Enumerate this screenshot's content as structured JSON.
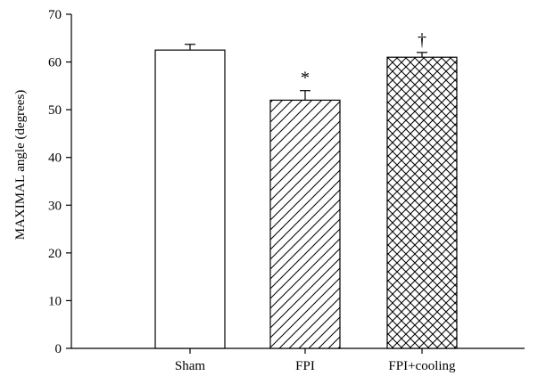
{
  "chart_data": {
    "type": "bar",
    "categories": [
      "Sham",
      "FPI",
      "FPI+cooling"
    ],
    "values": [
      62.5,
      52,
      61
    ],
    "errors": [
      1.2,
      2.0,
      1.0
    ],
    "annotations": [
      "",
      "*",
      "†"
    ],
    "patterns": [
      "none",
      "diagonal",
      "crosshatch"
    ],
    "ylabel": "MAXIMAL angle (degrees)",
    "xlabel": "",
    "ylim": [
      0,
      70
    ],
    "yticks": [
      0,
      10,
      20,
      30,
      40,
      50,
      60,
      70
    ],
    "bar_color": "#ffffff",
    "line_color": "#000000",
    "grid": false,
    "legend": "none"
  }
}
